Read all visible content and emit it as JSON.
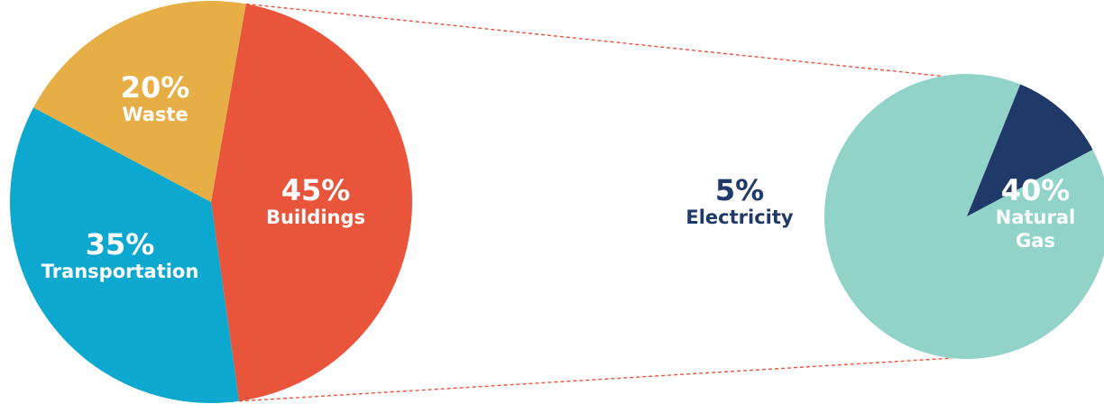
{
  "chart_data": [
    {
      "type": "pie",
      "title": "",
      "slices": [
        {
          "label": "Buildings",
          "value": 45,
          "value_label": "45%",
          "color": "#e8553b"
        },
        {
          "label": "Transportation",
          "value": 35,
          "value_label": "35%",
          "color": "#0da8cf"
        },
        {
          "label": "Waste",
          "value": 20,
          "value_label": "20%",
          "color": "#e6ae45"
        }
      ],
      "exploded_slice": "Buildings"
    },
    {
      "type": "pie",
      "title": "",
      "detail_of": "Buildings",
      "slices": [
        {
          "label": "Natural Gas",
          "label_lines": [
            "Natural",
            "Gas"
          ],
          "value": 40,
          "value_label": "40%",
          "color": "#91d2c9"
        },
        {
          "label": "Electricity",
          "value": 5,
          "value_label": "5%",
          "color": "#1f3a68"
        }
      ]
    }
  ],
  "colors": {
    "label_light": "#ffffff",
    "label_dark": "#1f3a68",
    "connector": "#e8553b"
  }
}
